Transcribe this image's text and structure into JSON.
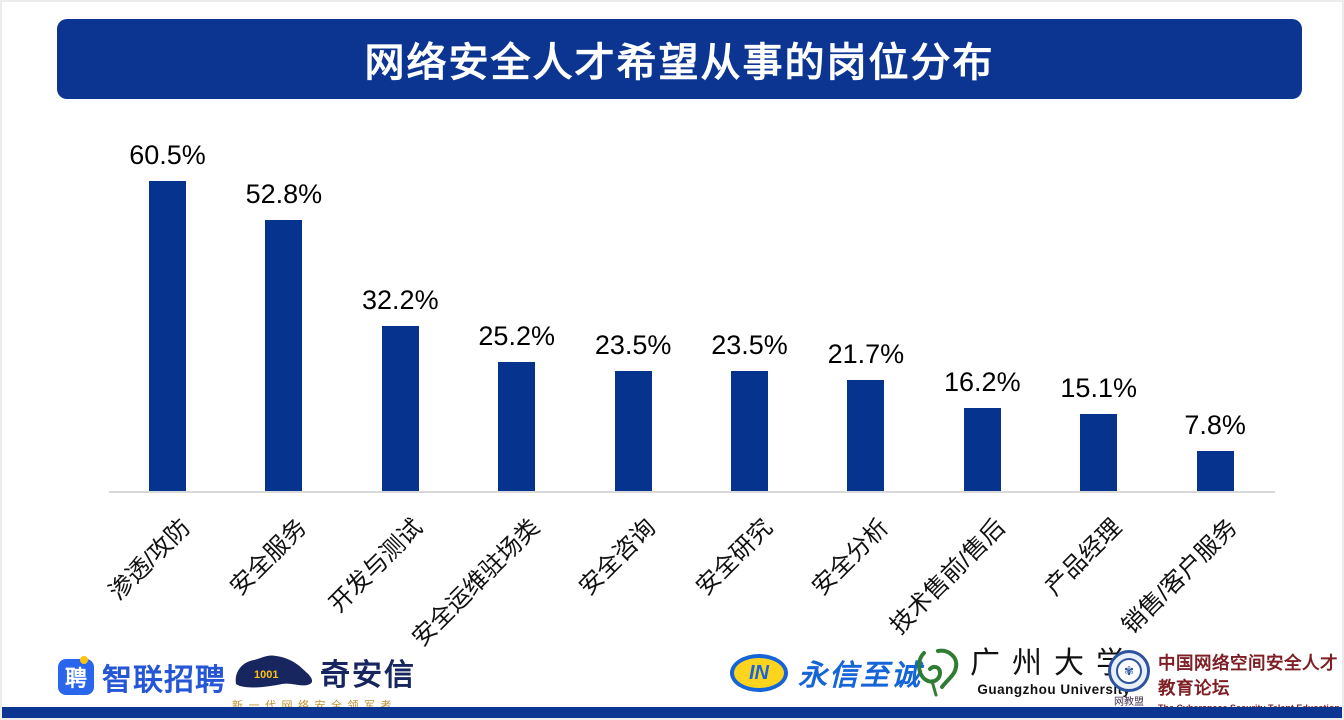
{
  "title_banner": {
    "text": "网络安全人才希望从事的岗位分布",
    "bg_color": "#0c3591",
    "text_color": "#ffffff"
  },
  "chart_data": {
    "type": "bar",
    "title": "网络安全人才希望从事的岗位分布",
    "categories": [
      "渗透/攻防",
      "安全服务",
      "开发与测试",
      "安全运维驻场类",
      "安全咨询",
      "安全研究",
      "安全分析",
      "技术售前/售后",
      "产品经理",
      "销售/客户服务"
    ],
    "values": [
      60.5,
      52.8,
      32.2,
      25.2,
      23.5,
      23.5,
      21.7,
      16.2,
      15.1,
      7.8
    ],
    "value_suffix": "%",
    "data_labels": [
      "60.5%",
      "52.8%",
      "32.2%",
      "25.2%",
      "23.5%",
      "23.5%",
      "21.7%",
      "16.2%",
      "15.1%",
      "7.8%"
    ],
    "bar_color": "#05338e",
    "xlabel": "",
    "ylabel": "",
    "ylim": [
      0,
      65
    ],
    "grid": false,
    "legend": false,
    "axis_line_color": "#d9d9d9",
    "category_label_rotation_deg": 45
  },
  "footer": {
    "strip_color": "#0c3591",
    "logos": {
      "zhaopin": {
        "icon_char": "聘",
        "text": "智联招聘"
      },
      "qianxin": {
        "binary": "1001",
        "text": "奇安信",
        "tagline": "新一代网络安全领军者"
      },
      "yongxin": {
        "icon_text": "IN",
        "text": "永信至诚"
      },
      "guangzhou_university": {
        "text_cn": "广州大学",
        "text_en": "Guangzhou University"
      },
      "alliance": {
        "badge_glyph": "✾",
        "badge_label": "网教盟",
        "text_cn": "中国网络空间安全人才教育论坛",
        "text_en": "The Cyberspace Security Talent Education Alliance of China"
      }
    }
  }
}
